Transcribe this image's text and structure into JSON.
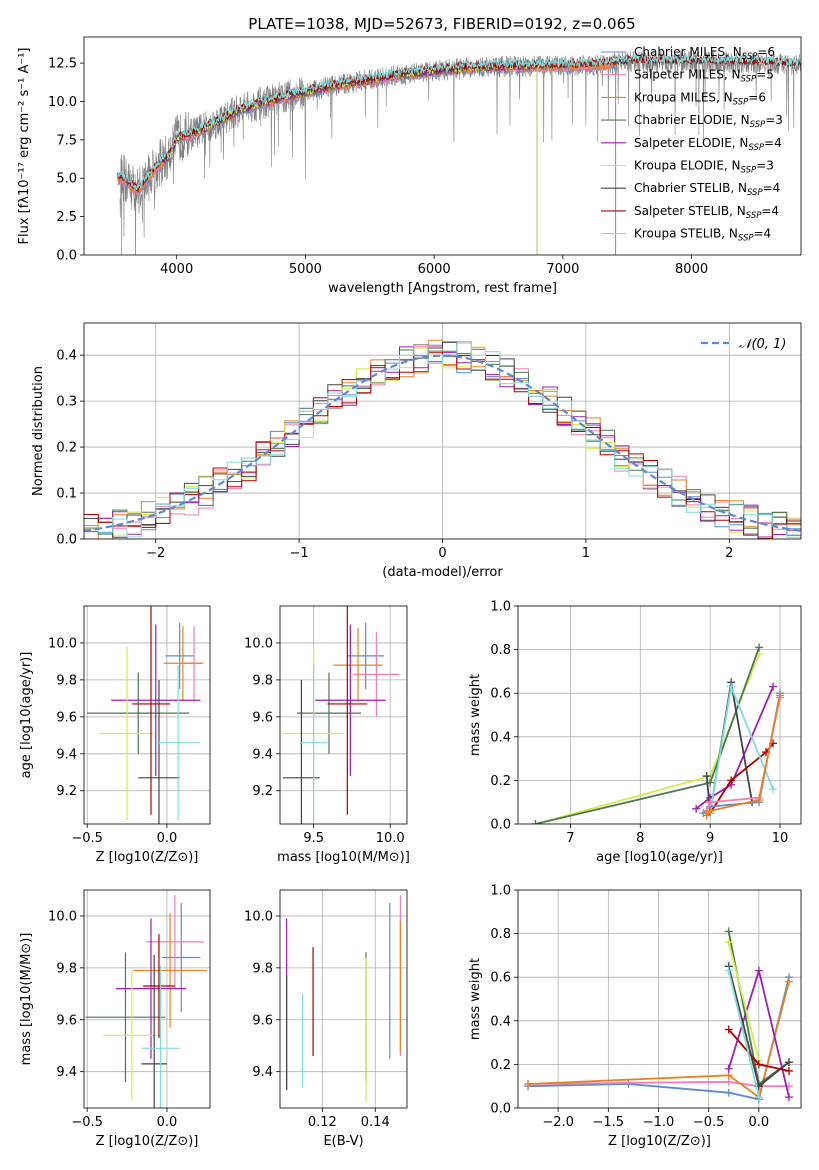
{
  "figure": {
    "title": "PLATE=1038, MJD=52673, FIBERID=0192, z=0.065"
  },
  "colors": {
    "Chabrier MILES": "#5b8bd6",
    "Salpeter MILES": "#f07fb5",
    "Kroupa MILES": "#e8821f",
    "Chabrier ELODIE": "#4a7a50",
    "Salpeter ELODIE": "#9b1fb0",
    "Kroupa ELODIE": "#d4ec4a",
    "Chabrier STELIB": "#444444",
    "Salpeter STELIB": "#b00000",
    "Kroupa STELIB": "#7fdcdc",
    "data": "#808080"
  },
  "chart_data": [
    {
      "id": "spectrum",
      "type": "line",
      "title": "PLATE=1038, MJD=52673, FIBERID=0192, z=0.065",
      "xlabel": "wavelength [Angstrom, rest frame]",
      "ylabel": "Flux [fλ10⁻¹⁷ erg cm⁻² s⁻¹ A⁻¹]",
      "xlim": [
        3280,
        8850
      ],
      "ylim": [
        0,
        14.2
      ],
      "xticks": [
        4000,
        5000,
        6000,
        7000,
        8000
      ],
      "yticks": [
        0.0,
        2.5,
        5.0,
        7.5,
        10.0,
        12.5
      ],
      "legend_position": "right",
      "legend": [
        {
          "label": "Chabrier MILES, N",
          "sub": "SSP",
          "tail": "=6"
        },
        {
          "label": "Salpeter MILES, N",
          "sub": "SSP",
          "tail": "=5"
        },
        {
          "label": "Kroupa MILES, N",
          "sub": "SSP",
          "tail": "=6"
        },
        {
          "label": "Chabrier ELODIE, N",
          "sub": "SSP",
          "tail": "=3"
        },
        {
          "label": "Salpeter ELODIE, N",
          "sub": "SSP",
          "tail": "=4"
        },
        {
          "label": "Kroupa ELODIE, N",
          "sub": "SSP",
          "tail": "=3"
        },
        {
          "label": "Chabrier STELIB, N",
          "sub": "SSP",
          "tail": "=4"
        },
        {
          "label": "Salpeter STELIB, N",
          "sub": "SSP",
          "tail": "=4"
        },
        {
          "label": "Kroupa STELIB, N",
          "sub": "SSP",
          "tail": "=4"
        }
      ],
      "continuum_x": [
        3580,
        3700,
        3850,
        3950,
        4000,
        4150,
        4300,
        4500,
        4800,
        5000,
        5200,
        5500,
        5800,
        6000,
        6300,
        6600,
        7000,
        7300,
        7500,
        8000,
        8500,
        8800
      ],
      "continuum_y": [
        5.0,
        4.2,
        5.8,
        6.5,
        7.6,
        8.0,
        8.6,
        9.5,
        10.2,
        10.6,
        11.0,
        11.4,
        11.8,
        12.0,
        12.2,
        12.3,
        12.3,
        12.4,
        12.6,
        12.6,
        12.5,
        12.4
      ],
      "model_ranges": {
        "Chabrier MILES": [
          3540,
          7410
        ],
        "Salpeter MILES": [
          3540,
          7410
        ],
        "Kroupa MILES": [
          3540,
          7410
        ],
        "Chabrier ELODIE": [
          3900,
          6800
        ],
        "Salpeter ELODIE": [
          3900,
          6800
        ],
        "Kroupa ELODIE": [
          3900,
          6800
        ],
        "Chabrier STELIB": [
          3540,
          8850
        ],
        "Salpeter STELIB": [
          3540,
          8850
        ],
        "Kroupa STELIB": [
          3540,
          8850
        ]
      }
    },
    {
      "id": "residuals",
      "type": "line",
      "xlabel": "(data-model)/error",
      "ylabel": "Normed distribution",
      "xlim": [
        -2.5,
        2.5
      ],
      "ylim": [
        0,
        0.47
      ],
      "xticks": [
        -2,
        -1,
        0,
        1,
        2
      ],
      "yticks": [
        0.0,
        0.1,
        0.2,
        0.3,
        0.4
      ],
      "legend_position": "top-right",
      "legend_label": "𝒩(0, 1)",
      "gaussian_mean": 0,
      "gaussian_sigma": 1,
      "bin_width": 0.1
    },
    {
      "id": "age_vs_Z",
      "type": "scatter",
      "xlabel": "Z [log10(Z/Z⊙)]",
      "ylabel": "age  [log10(age/yr)]",
      "xlim": [
        -0.52,
        0.27
      ],
      "ylim": [
        9.02,
        10.2
      ],
      "xticks": [
        -0.5,
        0.0
      ],
      "yticks": [
        9.2,
        9.4,
        9.6,
        9.8,
        10.0
      ],
      "points": [
        {
          "model": "Chabrier MILES",
          "x": 0.08,
          "y": 9.93,
          "xerr": 0.09,
          "yerr": 0.18
        },
        {
          "model": "Salpeter MILES",
          "x": 0.17,
          "y": 9.89,
          "xerr": 0.06,
          "yerr": 0.2
        },
        {
          "model": "Kroupa MILES",
          "x": 0.1,
          "y": 9.89,
          "xerr": 0.12,
          "yerr": 0.2
        },
        {
          "model": "Chabrier ELODIE",
          "x": -0.18,
          "y": 9.62,
          "xerr": 0.32,
          "yerr": 0.22
        },
        {
          "model": "Salpeter ELODIE",
          "x": -0.07,
          "y": 9.69,
          "xerr": 0.28,
          "yerr": 0.41
        },
        {
          "model": "Kroupa ELODIE",
          "x": -0.25,
          "y": 9.51,
          "xerr": 0.17,
          "yerr": 0.47
        },
        {
          "model": "Chabrier STELIB",
          "x": -0.05,
          "y": 9.27,
          "xerr": 0.13,
          "yerr": 0.53
        },
        {
          "model": "Salpeter STELIB",
          "x": -0.1,
          "y": 9.67,
          "xerr": 0.12,
          "yerr": 0.6
        },
        {
          "model": "Kroupa STELIB",
          "x": 0.07,
          "y": 9.46,
          "xerr": 0.14,
          "yerr": 0.42
        }
      ]
    },
    {
      "id": "age_vs_mass",
      "type": "scatter",
      "xlabel": "mass [log10(M/M⊙)]",
      "ylabel": "",
      "xlim": [
        9.28,
        10.11
      ],
      "ylim": [
        9.02,
        10.2
      ],
      "xticks": [
        9.5,
        10.0
      ],
      "yticks": [
        9.2,
        9.4,
        9.6,
        9.8,
        10.0
      ],
      "points": [
        {
          "model": "Chabrier MILES",
          "x": 9.84,
          "y": 9.93,
          "xerr": 0.12,
          "yerr": 0.18
        },
        {
          "model": "Salpeter MILES",
          "x": 9.91,
          "y": 9.83,
          "xerr": 0.15,
          "yerr": 0.23
        },
        {
          "model": "Kroupa MILES",
          "x": 9.79,
          "y": 9.88,
          "xerr": 0.16,
          "yerr": 0.2
        },
        {
          "model": "Chabrier ELODIE",
          "x": 9.6,
          "y": 9.62,
          "xerr": 0.21,
          "yerr": 0.22
        },
        {
          "model": "Salpeter ELODIE",
          "x": 9.74,
          "y": 9.69,
          "xerr": 0.23,
          "yerr": 0.41
        },
        {
          "model": "Kroupa ELODIE",
          "x": 9.5,
          "y": 9.51,
          "xerr": 0.2,
          "yerr": 0.47
        },
        {
          "model": "Chabrier STELIB",
          "x": 9.42,
          "y": 9.27,
          "xerr": 0.12,
          "yerr": 0.53
        },
        {
          "model": "Salpeter STELIB",
          "x": 9.72,
          "y": 9.67,
          "xerr": 0.13,
          "yerr": 0.6
        },
        {
          "model": "Kroupa STELIB",
          "x": 9.5,
          "y": 9.46,
          "xerr": 0.09,
          "yerr": 0.42
        }
      ]
    },
    {
      "id": "weight_vs_age",
      "type": "line",
      "xlabel": "age  [log10(age/yr)]",
      "ylabel": "mass weight",
      "xlim": [
        6.25,
        10.3
      ],
      "ylim": [
        0,
        1.0
      ],
      "xticks": [
        7,
        8,
        9,
        10
      ],
      "yticks": [
        0.0,
        0.2,
        0.4,
        0.6,
        0.8,
        1.0
      ],
      "series": [
        {
          "model": "Kroupa ELODIE",
          "x": [
            6.5,
            9.0,
            9.7
          ],
          "y": [
            0.0,
            0.22,
            0.78
          ]
        },
        {
          "model": "Chabrier ELODIE",
          "x": [
            6.5,
            9.0,
            9.7
          ],
          "y": [
            0.0,
            0.19,
            0.81
          ]
        },
        {
          "model": "Salpeter ELODIE",
          "x": [
            8.8,
            9.0,
            9.3,
            9.9
          ],
          "y": [
            0.07,
            0.12,
            0.18,
            0.63
          ]
        },
        {
          "model": "Chabrier STELIB",
          "x": [
            8.95,
            9.0,
            9.3,
            9.6
          ],
          "y": [
            0.22,
            0.05,
            0.65,
            0.1
          ]
        },
        {
          "model": "Salpeter STELIB",
          "x": [
            8.95,
            9.0,
            9.3,
            9.8,
            9.9
          ],
          "y": [
            0.04,
            0.05,
            0.2,
            0.33,
            0.37
          ]
        },
        {
          "model": "Kroupa STELIB",
          "x": [
            9.0,
            9.3,
            9.9
          ],
          "y": [
            0.05,
            0.63,
            0.16
          ]
        },
        {
          "model": "Chabrier MILES",
          "x": [
            8.9,
            9.0,
            9.7,
            10.0
          ],
          "y": [
            0.05,
            0.08,
            0.1,
            0.6
          ]
        },
        {
          "model": "Salpeter MILES",
          "x": [
            8.95,
            9.0,
            9.7,
            10.0
          ],
          "y": [
            0.06,
            0.1,
            0.12,
            0.58
          ]
        },
        {
          "model": "Kroupa MILES",
          "x": [
            8.95,
            9.0,
            9.7,
            10.0
          ],
          "y": [
            0.04,
            0.06,
            0.11,
            0.59
          ]
        }
      ]
    },
    {
      "id": "mass_vs_Z",
      "type": "scatter",
      "xlabel": "Z [log10(Z/Z⊙)]",
      "ylabel": "mass [log10(M/M⊙)]",
      "xlim": [
        -0.52,
        0.27
      ],
      "ylim": [
        9.26,
        10.1
      ],
      "xticks": [
        -0.5,
        0.0
      ],
      "yticks": [
        9.4,
        9.6,
        9.8,
        10.0
      ],
      "points": [
        {
          "model": "Chabrier MILES",
          "x": 0.09,
          "y": 9.84,
          "xerr": 0.12,
          "yerr": 0.21
        },
        {
          "model": "Salpeter MILES",
          "x": 0.05,
          "y": 9.9,
          "xerr": 0.18,
          "yerr": 0.18
        },
        {
          "model": "Kroupa MILES",
          "x": 0.02,
          "y": 9.79,
          "xerr": 0.23,
          "yerr": 0.22
        },
        {
          "model": "Chabrier ELODIE",
          "x": -0.26,
          "y": 9.61,
          "xerr": 0.25,
          "yerr": 0.25
        },
        {
          "model": "Salpeter ELODIE",
          "x": -0.1,
          "y": 9.72,
          "xerr": 0.22,
          "yerr": 0.27
        },
        {
          "model": "Kroupa ELODIE",
          "x": -0.22,
          "y": 9.54,
          "xerr": 0.18,
          "yerr": 0.25
        },
        {
          "model": "Chabrier STELIB",
          "x": -0.08,
          "y": 9.43,
          "xerr": 0.08,
          "yerr": 0.42
        },
        {
          "model": "Salpeter STELIB",
          "x": -0.05,
          "y": 9.73,
          "xerr": 0.1,
          "yerr": 0.2
        },
        {
          "model": "Kroupa STELIB",
          "x": -0.04,
          "y": 9.49,
          "xerr": 0.12,
          "yerr": 0.32
        }
      ]
    },
    {
      "id": "mass_vs_ebv",
      "type": "scatter",
      "xlabel": "E(B-V)",
      "ylabel": "",
      "xlim": [
        0.104,
        0.152
      ],
      "ylim": [
        9.26,
        10.1
      ],
      "xticks": [
        0.12,
        0.14
      ],
      "yticks": [
        9.4,
        9.6,
        9.8,
        10.0
      ],
      "points": [
        {
          "model": "Salpeter ELODIE",
          "x": 0.1065,
          "y": 9.66,
          "yerr": 0.33
        },
        {
          "model": "Chabrier STELIB",
          "x": 0.1065,
          "y": 9.55,
          "yerr": 0.22
        },
        {
          "model": "Kroupa STELIB",
          "x": 0.1125,
          "y": 9.52,
          "yerr": 0.18
        },
        {
          "model": "Salpeter STELIB",
          "x": 0.1165,
          "y": 9.67,
          "yerr": 0.21
        },
        {
          "model": "Chabrier ELODIE",
          "x": 0.1365,
          "y": 9.61,
          "yerr": 0.25
        },
        {
          "model": "Kroupa ELODIE",
          "x": 0.1365,
          "y": 9.56,
          "yerr": 0.28
        },
        {
          "model": "Chabrier MILES",
          "x": 0.1455,
          "y": 9.75,
          "yerr": 0.3
        },
        {
          "model": "Salpeter MILES",
          "x": 0.1495,
          "y": 9.77,
          "yerr": 0.31
        },
        {
          "model": "Kroupa MILES",
          "x": 0.1495,
          "y": 9.73,
          "yerr": 0.25
        }
      ]
    },
    {
      "id": "weight_vs_Z",
      "type": "line",
      "xlabel": "Z [log10(Z/Z⊙)]",
      "ylabel": "mass weight",
      "xlim": [
        -2.4,
        0.42
      ],
      "ylim": [
        0,
        1.0
      ],
      "xticks": [
        -2.0,
        -1.5,
        -1.0,
        -0.5,
        0.0
      ],
      "yticks": [
        0.0,
        0.2,
        0.4,
        0.6,
        0.8,
        1.0
      ],
      "series": [
        {
          "model": "Chabrier MILES",
          "x": [
            -2.3,
            -1.3,
            -0.3,
            0.0,
            0.3
          ],
          "y": [
            0.1,
            0.11,
            0.07,
            0.04,
            0.6
          ]
        },
        {
          "model": "Salpeter MILES",
          "x": [
            -2.3,
            -0.3,
            0.0,
            0.3
          ],
          "y": [
            0.11,
            0.12,
            0.1,
            0.1
          ]
        },
        {
          "model": "Kroupa MILES",
          "x": [
            -2.3,
            -0.3,
            0.0,
            0.3
          ],
          "y": [
            0.11,
            0.15,
            0.05,
            0.58
          ]
        },
        {
          "model": "Chabrier ELODIE",
          "x": [
            -0.3,
            0.0,
            0.3
          ],
          "y": [
            0.81,
            0.11,
            0.21
          ]
        },
        {
          "model": "Salpeter ELODIE",
          "x": [
            -0.3,
            0.0,
            0.3
          ],
          "y": [
            0.18,
            0.63,
            0.05
          ]
        },
        {
          "model": "Kroupa ELODIE",
          "x": [
            -0.3,
            0.0
          ],
          "y": [
            0.76,
            0.22
          ]
        },
        {
          "model": "Chabrier STELIB",
          "x": [
            -0.3,
            0.0,
            0.3
          ],
          "y": [
            0.65,
            0.1,
            0.21
          ]
        },
        {
          "model": "Salpeter STELIB",
          "x": [
            -0.3,
            0.0,
            0.3
          ],
          "y": [
            0.36,
            0.2,
            0.17
          ]
        },
        {
          "model": "Kroupa STELIB",
          "x": [
            -0.3,
            0.0
          ],
          "y": [
            0.63,
            0.05
          ]
        }
      ]
    }
  ]
}
